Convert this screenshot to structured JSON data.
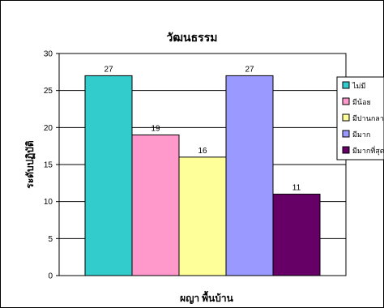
{
  "chart_data": {
    "type": "bar",
    "title": "วัฒนธรรม",
    "xlabel": "ผญา พื้นบ้าน",
    "ylabel": "ระดับปฏิบัติ",
    "ylim": [
      0,
      30
    ],
    "yticks": [
      0,
      5,
      10,
      15,
      20,
      25,
      30
    ],
    "grid": true,
    "legend_position": "right",
    "series": [
      {
        "name": "ไม่มี",
        "values": [
          27
        ],
        "color": "#33CCCC"
      },
      {
        "name": "มีน้อย",
        "values": [
          19
        ],
        "color": "#FF99CC"
      },
      {
        "name": "มีปานกลาง",
        "values": [
          16
        ],
        "color": "#FFFF99"
      },
      {
        "name": "มีมาก",
        "values": [
          27
        ],
        "color": "#9999FF"
      },
      {
        "name": "มีมากที่สุด",
        "values": [
          11
        ],
        "color": "#660066"
      }
    ],
    "data_labels": [
      "27",
      "19",
      "16",
      "27",
      "11"
    ]
  }
}
